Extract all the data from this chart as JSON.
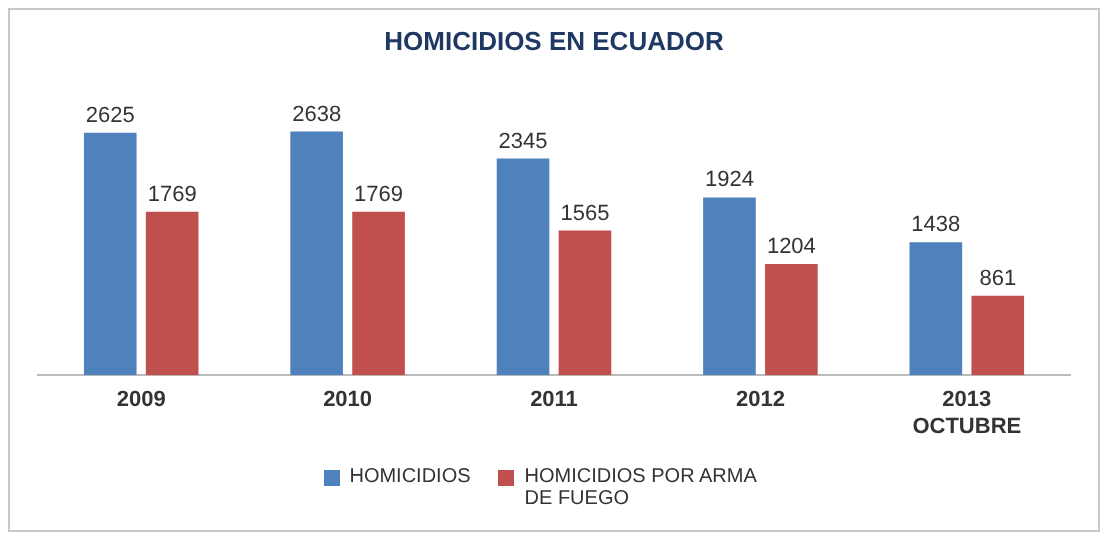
{
  "chart_data": {
    "type": "bar",
    "title": "HOMICIDIOS EN ECUADOR",
    "categories": [
      "2009",
      "2010",
      "2011",
      "2012",
      "2013\nOCTUBRE"
    ],
    "series": [
      {
        "name": "HOMICIDIOS",
        "color": "#4f81bd",
        "values": [
          2625,
          2638,
          2345,
          1924,
          1438
        ]
      },
      {
        "name": "HOMICIDIOS POR ARMA DE FUEGO",
        "color": "#c0504d",
        "values": [
          1769,
          1769,
          1565,
          1204,
          861
        ]
      }
    ],
    "data_labels": true,
    "legend": "bottom"
  }
}
